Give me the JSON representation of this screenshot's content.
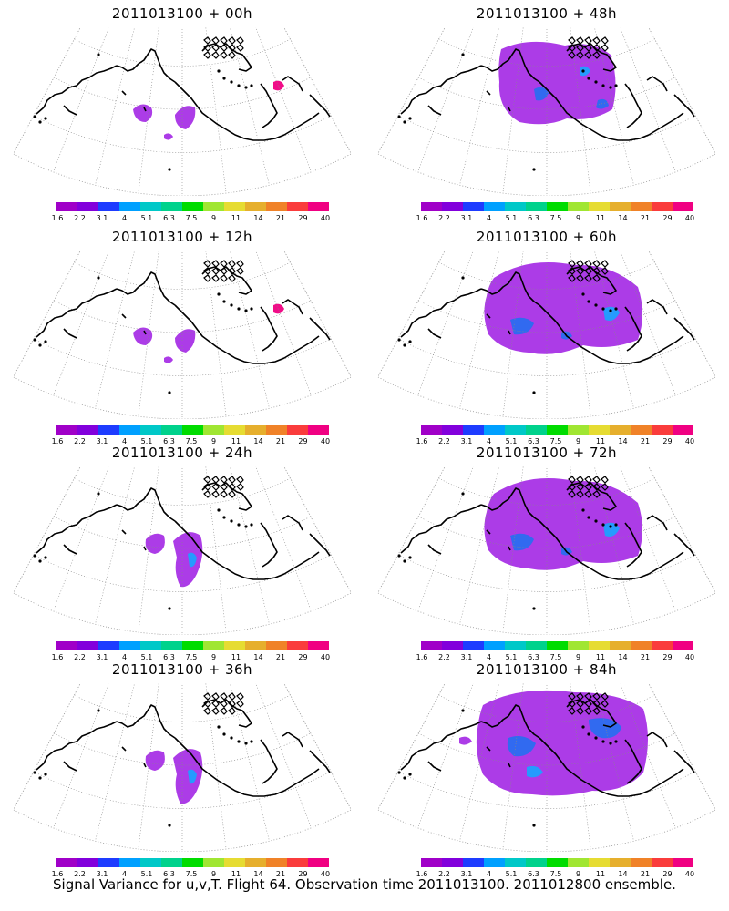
{
  "panels": [
    {
      "title": "2011013100 + 00h",
      "coverage": 0
    },
    {
      "title": "2011013100 + 48h",
      "coverage": 2
    },
    {
      "title": "2011013100 + 12h",
      "coverage": 0
    },
    {
      "title": "2011013100 + 60h",
      "coverage": 3
    },
    {
      "title": "2011013100 + 24h",
      "coverage": 1
    },
    {
      "title": "2011013100 + 72h",
      "coverage": 3
    },
    {
      "title": "2011013100 + 36h",
      "coverage": 1
    },
    {
      "title": "2011013100 + 84h",
      "coverage": 4
    }
  ],
  "colorbar": {
    "labels": [
      "1.6",
      "2.2",
      "3.1",
      "4",
      "5.1",
      "6.3",
      "7.5",
      "9",
      "11",
      "14",
      "21",
      "29",
      "40"
    ],
    "colors": [
      "#a000c8",
      "#8200dc",
      "#1e3cff",
      "#00a0ff",
      "#00c8c8",
      "#00d28c",
      "#00dc00",
      "#a0e632",
      "#e6dc32",
      "#e6af2d",
      "#f08228",
      "#fa3c3c",
      "#f00082"
    ]
  },
  "footer": "Signal Variance for u,v,T. Flight 64. Observation time 2011013100. 2011012800 ensemble."
}
